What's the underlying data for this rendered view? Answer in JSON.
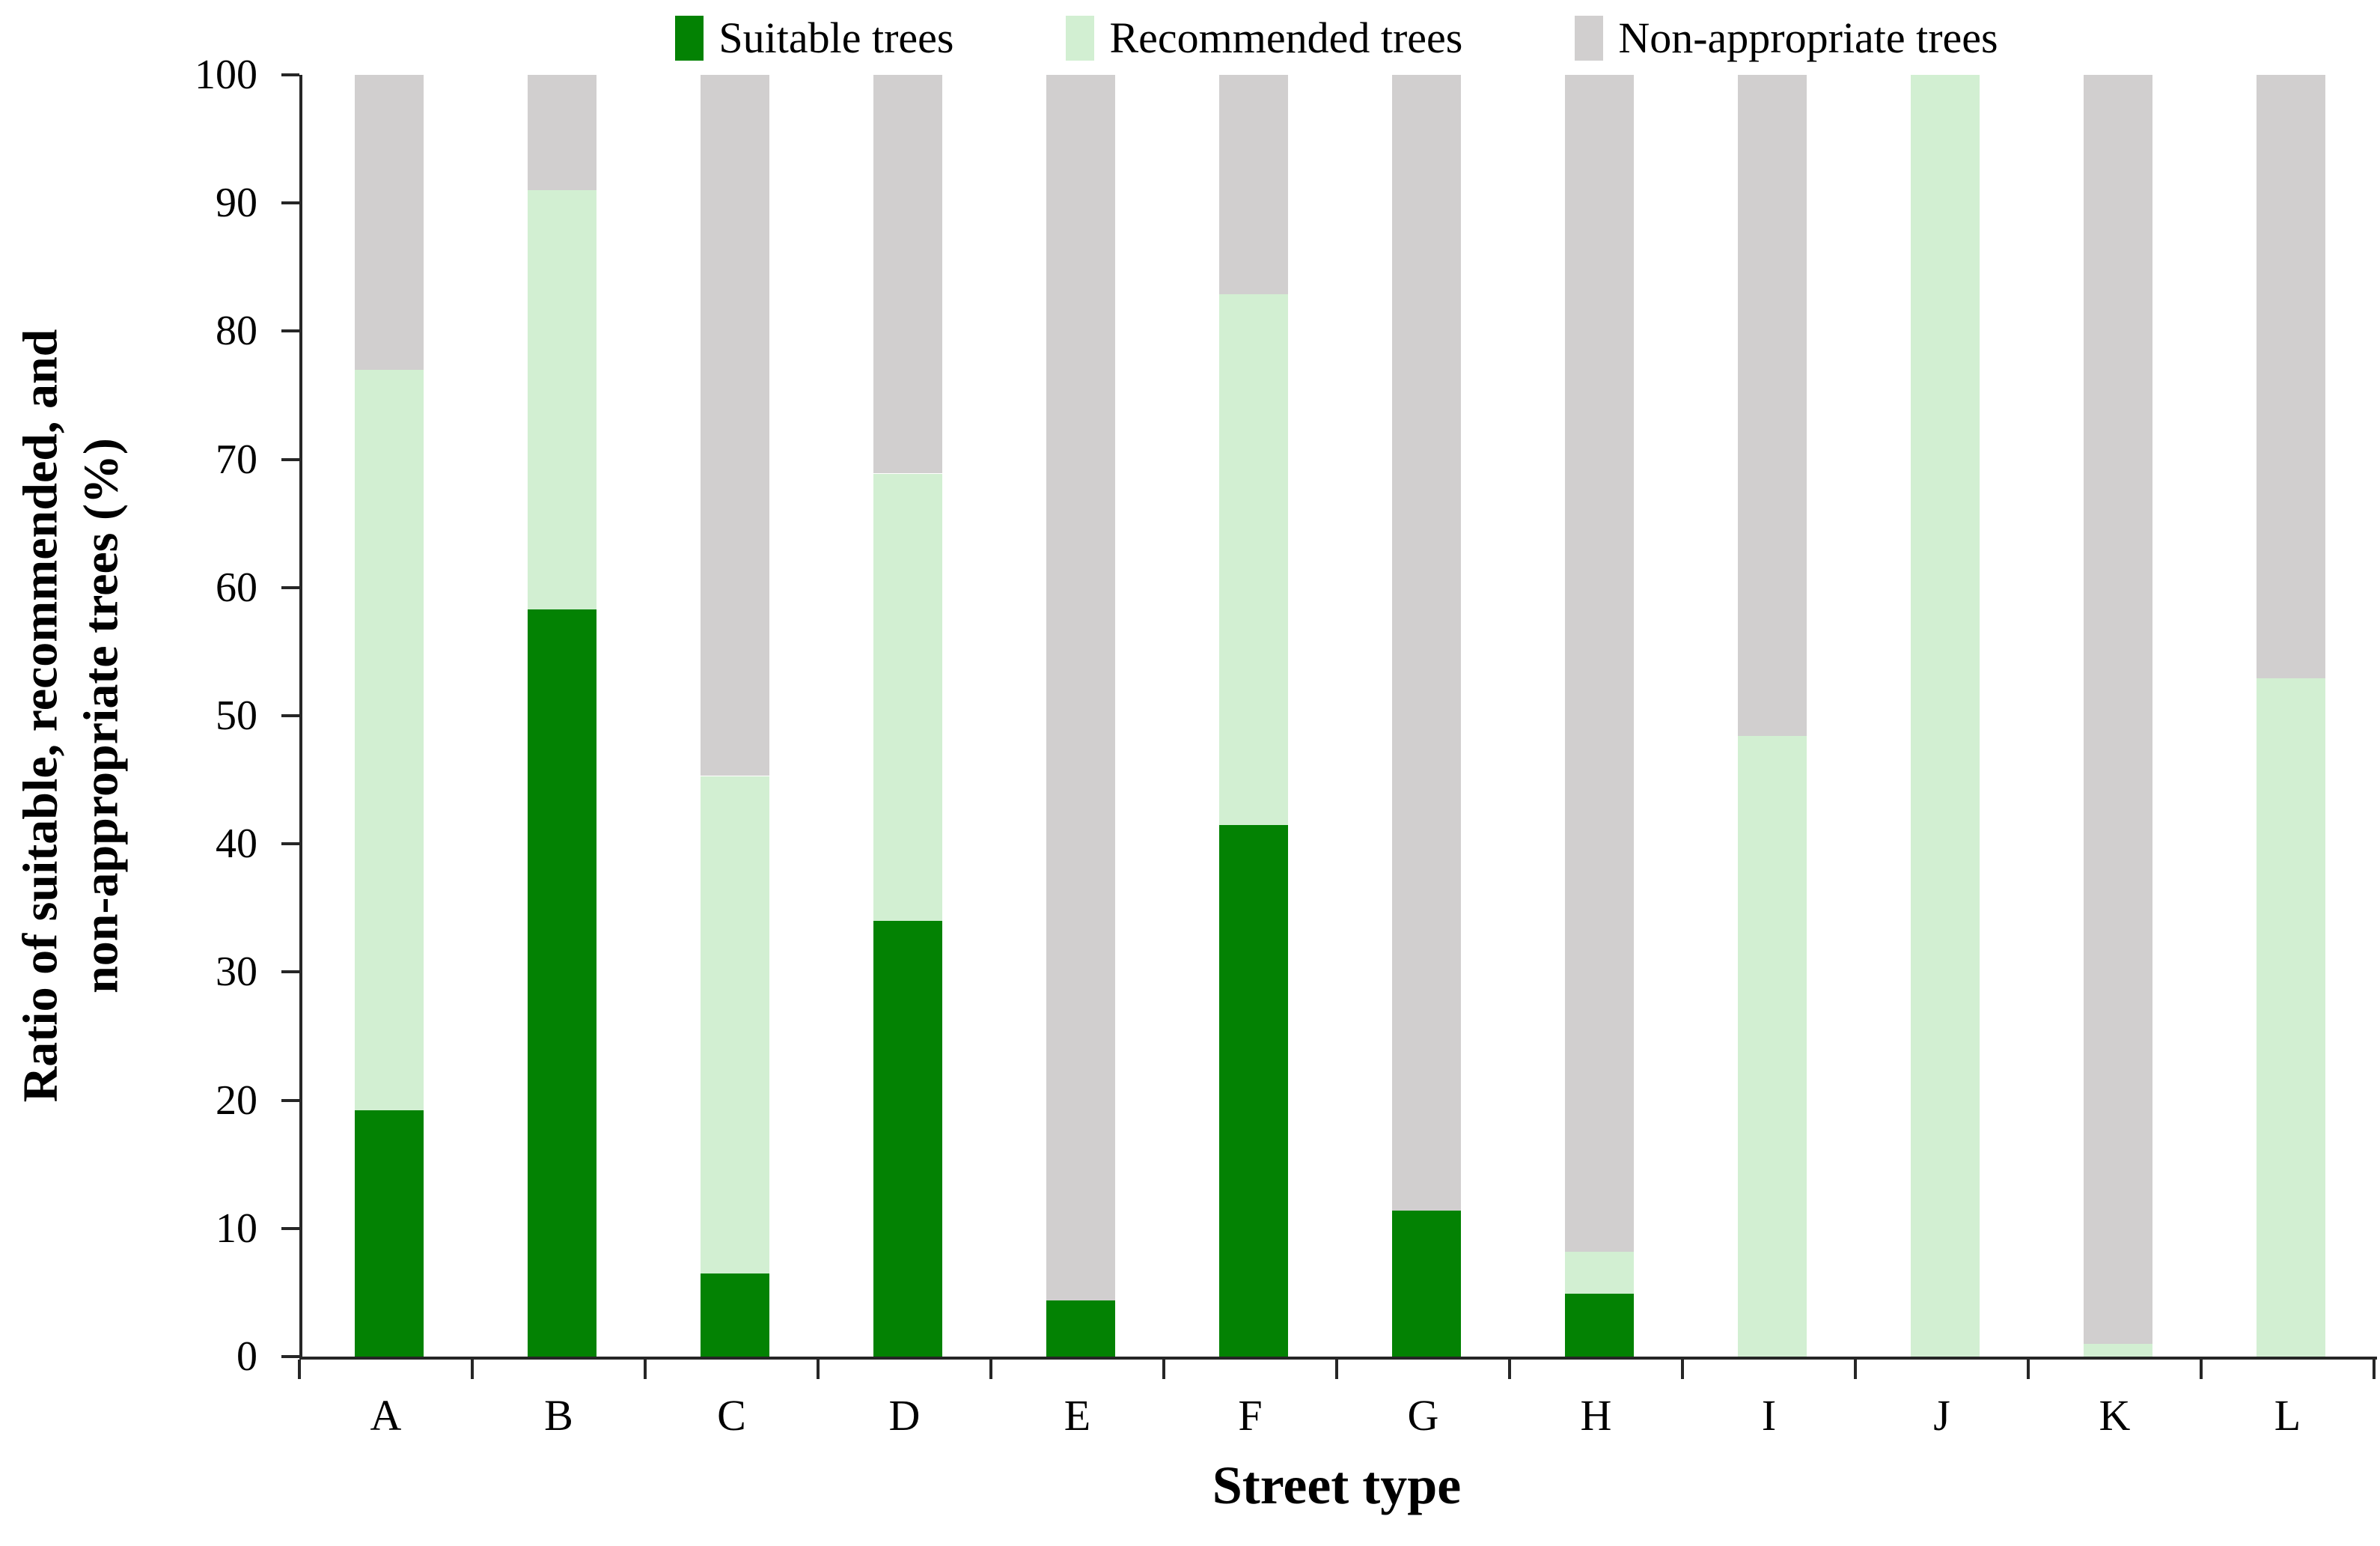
{
  "chart_data": {
    "type": "bar",
    "stacked": true,
    "percent_stack": true,
    "xlabel": "Street type",
    "ylabel_lines": [
      "Ratio of suitable, recommended, and",
      "non-appropriate trees (%)"
    ],
    "categories": [
      "A",
      "B",
      "C",
      "D",
      "E",
      "F",
      "G",
      "H",
      "I",
      "J",
      "K",
      "L"
    ],
    "series": [
      {
        "name": "Suitable trees",
        "color": "#038203",
        "values": [
          19.2,
          58.3,
          6.5,
          34.0,
          4.4,
          41.5,
          11.4,
          4.9,
          0,
          0,
          0,
          0
        ]
      },
      {
        "name": "Recommended trees",
        "color": "#D2EFD2",
        "values": [
          57.8,
          32.7,
          38.8,
          34.9,
          0,
          41.4,
          0,
          3.3,
          48.4,
          100,
          1.0,
          52.9
        ]
      },
      {
        "name": "Non-appropriate trees",
        "color": "#D1CFCF",
        "values": [
          23.0,
          9.0,
          54.7,
          31.1,
          95.6,
          17.1,
          88.6,
          91.8,
          51.6,
          0,
          99.0,
          47.1
        ]
      }
    ],
    "ylim": [
      0,
      100
    ],
    "yticks": [
      "0",
      "10",
      "20",
      "30",
      "40",
      "50",
      "60",
      "70",
      "80",
      "90",
      "100"
    ],
    "legend_position": "top",
    "grid": false,
    "axis_color": "#262626",
    "background_color": "#FFFFFF"
  }
}
